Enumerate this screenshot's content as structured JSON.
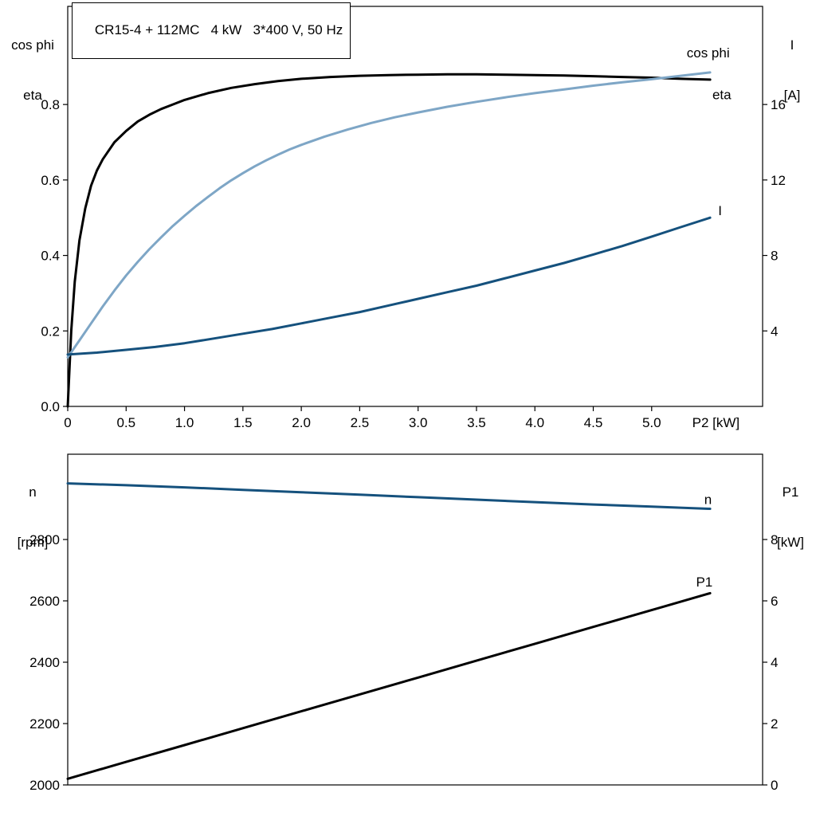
{
  "colors": {
    "frame": "#000000",
    "black": "#000000",
    "dark_blue": "#15517d",
    "light_blue": "#7ea6c6",
    "background": "#ffffff"
  },
  "chart_data": [
    {
      "id": "motor-eta-cosphi-current",
      "type": "line",
      "title": "CR15-4 + 112MC   4 kW   3*400 V, 50 Hz",
      "grid": false,
      "x_axis": {
        "label": "P2 [kW]",
        "label_at": 5.55,
        "tick_labels": [
          "0",
          "0.5",
          "1.0",
          "1.5",
          "2.0",
          "2.5",
          "3.0",
          "3.5",
          "4.0",
          "4.5",
          "5.0"
        ],
        "range": [
          0,
          5.95
        ]
      },
      "left_axis": {
        "title_lines": [
          "cos phi",
          "eta"
        ],
        "tick_labels": [
          "0.0",
          "0.2",
          "0.4",
          "0.6",
          "0.8"
        ],
        "range": [
          0,
          1.06
        ]
      },
      "right_axis": {
        "title_lines": [
          "I",
          "[A]"
        ],
        "tick_labels": [
          "4",
          "8",
          "12",
          "16"
        ],
        "range": [
          0,
          21.2
        ]
      },
      "series": [
        {
          "name": "eta",
          "label": "eta",
          "axis": "left",
          "color": "black",
          "label_at": {
            "x": 5.52,
            "y": 0.825
          },
          "points": [
            [
              0,
              0
            ],
            [
              0.03,
              0.2
            ],
            [
              0.06,
              0.33
            ],
            [
              0.1,
              0.44
            ],
            [
              0.15,
              0.525
            ],
            [
              0.2,
              0.585
            ],
            [
              0.25,
              0.625
            ],
            [
              0.3,
              0.655
            ],
            [
              0.4,
              0.7
            ],
            [
              0.5,
              0.73
            ],
            [
              0.6,
              0.755
            ],
            [
              0.7,
              0.773
            ],
            [
              0.8,
              0.788
            ],
            [
              0.9,
              0.8
            ],
            [
              1.0,
              0.812
            ],
            [
              1.2,
              0.83
            ],
            [
              1.4,
              0.844
            ],
            [
              1.6,
              0.854
            ],
            [
              1.8,
              0.862
            ],
            [
              2.0,
              0.868
            ],
            [
              2.25,
              0.873
            ],
            [
              2.5,
              0.876
            ],
            [
              2.75,
              0.878
            ],
            [
              3.0,
              0.879
            ],
            [
              3.25,
              0.88
            ],
            [
              3.5,
              0.88
            ],
            [
              3.75,
              0.879
            ],
            [
              4.0,
              0.878
            ],
            [
              4.25,
              0.877
            ],
            [
              4.5,
              0.875
            ],
            [
              4.75,
              0.873
            ],
            [
              5.0,
              0.871
            ],
            [
              5.25,
              0.868
            ],
            [
              5.5,
              0.866
            ]
          ]
        },
        {
          "name": "cos phi",
          "label": "cos phi",
          "axis": "left",
          "color": "light_blue",
          "label_at": {
            "x": 5.3,
            "y": 0.935
          },
          "points": [
            [
              0,
              0.13
            ],
            [
              0.1,
              0.175
            ],
            [
              0.2,
              0.22
            ],
            [
              0.3,
              0.265
            ],
            [
              0.4,
              0.307
            ],
            [
              0.5,
              0.347
            ],
            [
              0.6,
              0.383
            ],
            [
              0.7,
              0.417
            ],
            [
              0.8,
              0.448
            ],
            [
              0.9,
              0.478
            ],
            [
              1.0,
              0.505
            ],
            [
              1.1,
              0.531
            ],
            [
              1.2,
              0.555
            ],
            [
              1.3,
              0.578
            ],
            [
              1.4,
              0.599
            ],
            [
              1.5,
              0.618
            ],
            [
              1.6,
              0.636
            ],
            [
              1.7,
              0.652
            ],
            [
              1.8,
              0.667
            ],
            [
              1.9,
              0.681
            ],
            [
              2.0,
              0.693
            ],
            [
              2.2,
              0.715
            ],
            [
              2.4,
              0.734
            ],
            [
              2.6,
              0.751
            ],
            [
              2.8,
              0.766
            ],
            [
              3.0,
              0.779
            ],
            [
              3.25,
              0.794
            ],
            [
              3.5,
              0.807
            ],
            [
              3.75,
              0.819
            ],
            [
              4.0,
              0.83
            ],
            [
              4.25,
              0.84
            ],
            [
              4.5,
              0.85
            ],
            [
              4.75,
              0.859
            ],
            [
              5.0,
              0.867
            ],
            [
              5.25,
              0.876
            ],
            [
              5.5,
              0.885
            ]
          ]
        },
        {
          "name": "I",
          "label": "I",
          "axis": "right",
          "color": "dark_blue",
          "label_at": {
            "x": 5.57,
            "y": 10.35
          },
          "points": [
            [
              0,
              2.75
            ],
            [
              0.25,
              2.85
            ],
            [
              0.5,
              3.0
            ],
            [
              0.75,
              3.15
            ],
            [
              1.0,
              3.35
            ],
            [
              1.25,
              3.6
            ],
            [
              1.5,
              3.85
            ],
            [
              1.75,
              4.1
            ],
            [
              2.0,
              4.4
            ],
            [
              2.25,
              4.7
            ],
            [
              2.5,
              5.0
            ],
            [
              2.75,
              5.35
            ],
            [
              3.0,
              5.7
            ],
            [
              3.25,
              6.05
            ],
            [
              3.5,
              6.4
            ],
            [
              3.75,
              6.8
            ],
            [
              4.0,
              7.2
            ],
            [
              4.25,
              7.6
            ],
            [
              4.5,
              8.05
            ],
            [
              4.75,
              8.5
            ],
            [
              5.0,
              9.0
            ],
            [
              5.25,
              9.5
            ],
            [
              5.5,
              10.0
            ]
          ]
        }
      ]
    },
    {
      "id": "motor-speed-power",
      "type": "line",
      "title": "",
      "grid": false,
      "x_axis": {
        "label": "",
        "label_at": 5.55,
        "tick_labels": [],
        "range": [
          0,
          5.95
        ]
      },
      "left_axis": {
        "title_lines": [
          "n",
          "[rpm]"
        ],
        "tick_labels": [
          "2000",
          "2200",
          "2400",
          "2600",
          "2800"
        ],
        "range": [
          2000,
          3078
        ]
      },
      "right_axis": {
        "title_lines": [
          "P1",
          "[kW]"
        ],
        "tick_labels": [
          "0",
          "2",
          "4",
          "6",
          "8"
        ],
        "range": [
          0,
          10.78
        ]
      },
      "series": [
        {
          "name": "n",
          "label": "n",
          "axis": "left",
          "color": "dark_blue",
          "label_at": {
            "x": 5.45,
            "y": 2928
          },
          "points": [
            [
              0,
              2983
            ],
            [
              0.5,
              2977
            ],
            [
              1.0,
              2970
            ],
            [
              1.5,
              2962
            ],
            [
              2.0,
              2954
            ],
            [
              2.5,
              2946
            ],
            [
              3.0,
              2938
            ],
            [
              3.5,
              2930
            ],
            [
              4.0,
              2922
            ],
            [
              4.5,
              2914
            ],
            [
              5.0,
              2907
            ],
            [
              5.5,
              2900
            ]
          ]
        },
        {
          "name": "P1",
          "label": "P1",
          "axis": "right",
          "color": "black",
          "label_at": {
            "x": 5.38,
            "y": 6.6
          },
          "points": [
            [
              0,
              0.2
            ],
            [
              0.5,
              0.75
            ],
            [
              1.0,
              1.3
            ],
            [
              1.5,
              1.85
            ],
            [
              2.0,
              2.4
            ],
            [
              2.5,
              2.95
            ],
            [
              3.0,
              3.5
            ],
            [
              3.5,
              4.05
            ],
            [
              4.0,
              4.6
            ],
            [
              4.5,
              5.15
            ],
            [
              5.0,
              5.7
            ],
            [
              5.5,
              6.25
            ]
          ]
        }
      ]
    }
  ]
}
